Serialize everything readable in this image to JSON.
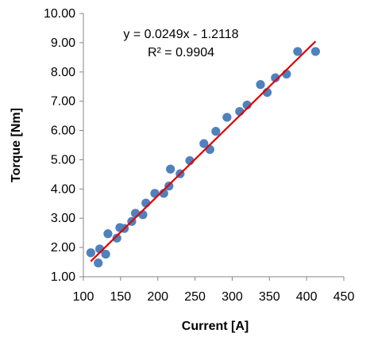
{
  "chart_data": {
    "type": "scatter",
    "xlabel": "Current [A]",
    "ylabel": "Torque [Nm]",
    "xlim": [
      100,
      450
    ],
    "ylim": [
      1.0,
      10.0
    ],
    "x_ticks": [
      "100",
      "150",
      "200",
      "250",
      "300",
      "350",
      "400",
      "450"
    ],
    "y_ticks": [
      "1.00",
      "2.00",
      "3.00",
      "4.00",
      "5.00",
      "6.00",
      "7.00",
      "8.00",
      "9.00",
      "10.00"
    ],
    "grid": false,
    "legend": "none",
    "series": [
      {
        "marker_color": "#4f81bd",
        "points": [
          [
            110,
            1.82
          ],
          [
            120,
            1.47
          ],
          [
            122,
            1.95
          ],
          [
            130,
            1.77
          ],
          [
            133,
            2.47
          ],
          [
            145,
            2.32
          ],
          [
            149,
            2.68
          ],
          [
            155,
            2.65
          ],
          [
            165,
            2.89
          ],
          [
            170,
            3.17
          ],
          [
            180,
            3.12
          ],
          [
            184,
            3.52
          ],
          [
            196,
            3.85
          ],
          [
            208,
            3.85
          ],
          [
            215,
            4.1
          ],
          [
            217,
            4.68
          ],
          [
            230,
            4.52
          ],
          [
            243,
            4.97
          ],
          [
            262,
            5.55
          ],
          [
            270,
            5.35
          ],
          [
            278,
            5.97
          ],
          [
            293,
            6.45
          ],
          [
            310,
            6.65
          ],
          [
            320,
            6.87
          ],
          [
            338,
            7.57
          ],
          [
            347,
            7.3
          ],
          [
            358,
            7.8
          ],
          [
            373,
            7.93
          ],
          [
            388,
            8.7
          ],
          [
            412,
            8.7
          ]
        ]
      }
    ],
    "trendline": {
      "slope": 0.0249,
      "intercept": -1.2118,
      "x_start": 110,
      "x_end": 412,
      "color": "#e00000",
      "equation_label": "y = 0.0249x - 1.2118",
      "r2_label": "R² = 0.9904"
    }
  }
}
